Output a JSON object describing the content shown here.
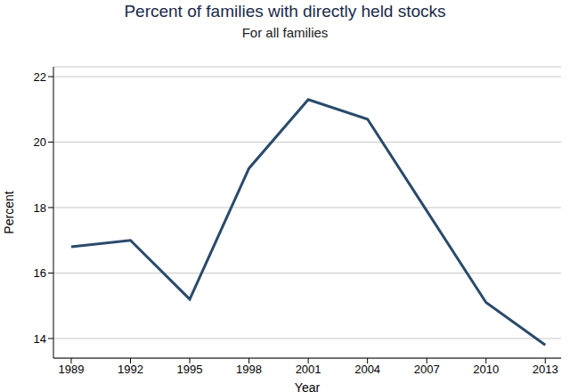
{
  "chart_data": {
    "type": "line",
    "title": "Percent of families with directly held stocks",
    "subtitle": "For all families",
    "x_label": "Year",
    "y_label": "Percent",
    "x": [
      1989,
      1992,
      1995,
      1998,
      2001,
      2004,
      2007,
      2010,
      2013
    ],
    "values": [
      16.8,
      17.0,
      15.2,
      19.2,
      21.3,
      20.7,
      17.9,
      15.1,
      13.8
    ],
    "color": "#2a4a6b",
    "xlim": [
      1988.1,
      2013.8
    ],
    "xticks": [
      1989,
      1992,
      1995,
      1998,
      2001,
      2004,
      2007,
      2010,
      2013
    ],
    "ylim": [
      13.4,
      22.3
    ],
    "yticks": [
      14,
      16,
      18,
      20,
      22
    ],
    "grid": true
  }
}
